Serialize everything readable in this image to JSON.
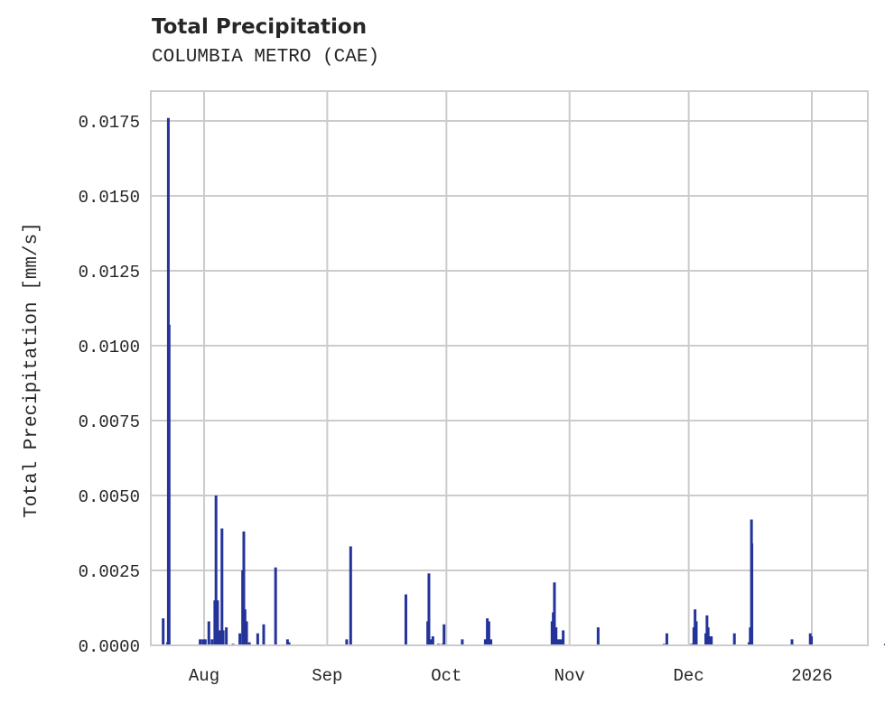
{
  "header": {
    "title": "Total Precipitation",
    "subtitle": "COLUMBIA METRO (CAE)"
  },
  "colors": {
    "bar": "#24339a",
    "grid": "#cccccc",
    "frame": "#cccccc",
    "text": "#262626"
  },
  "chart_data": {
    "type": "bar",
    "title": "Total Precipitation",
    "subtitle": "COLUMBIA METRO (CAE)",
    "xlabel": "",
    "ylabel": "Total Precipitation [mm/s]",
    "ylim": [
      0,
      0.0185
    ],
    "xlim_day": [
      -14,
      172
    ],
    "grid": true,
    "legend": "none",
    "x_ticks": [
      {
        "label": "Aug",
        "day": 0
      },
      {
        "label": "Sep",
        "day": 31
      },
      {
        "label": "Oct",
        "day": 61
      },
      {
        "label": "Nov",
        "day": 92
      },
      {
        "label": "Dec",
        "day": 122
      },
      {
        "label": "2026",
        "day": 153
      }
    ],
    "y_ticks": [
      "0.0000",
      "0.0025",
      "0.0050",
      "0.0075",
      "0.0100",
      "0.0125",
      "0.0150",
      "0.0175"
    ],
    "y_tick_values": [
      0,
      0.0025,
      0.005,
      0.0075,
      0.01,
      0.0125,
      0.015,
      0.0175
    ],
    "x_unit": "days since Aug 1 2025",
    "points": [
      {
        "day": -10.3,
        "value": 0.0009
      },
      {
        "day": -9.2,
        "value": 0.0001
      },
      {
        "day": -9.0,
        "value": 0.0176
      },
      {
        "day": -8.8,
        "value": 0.0107
      },
      {
        "day": -1.0,
        "value": 0.0002
      },
      {
        "day": -0.3,
        "value": 0.0002
      },
      {
        "day": 0.3,
        "value": 0.0002
      },
      {
        "day": 1.2,
        "value": 0.0008
      },
      {
        "day": 2.0,
        "value": 0.0002
      },
      {
        "day": 2.7,
        "value": 0.0015
      },
      {
        "day": 3.0,
        "value": 0.005
      },
      {
        "day": 3.4,
        "value": 0.0015
      },
      {
        "day": 3.9,
        "value": 0.0005
      },
      {
        "day": 4.5,
        "value": 0.0039
      },
      {
        "day": 4.8,
        "value": 0.0005
      },
      {
        "day": 5.6,
        "value": 0.0006
      },
      {
        "day": 7.3,
        "value": 5e-05
      },
      {
        "day": 9.0,
        "value": 0.0004
      },
      {
        "day": 9.7,
        "value": 0.0025
      },
      {
        "day": 10.0,
        "value": 0.0038
      },
      {
        "day": 10.3,
        "value": 0.0012
      },
      {
        "day": 10.7,
        "value": 0.0008
      },
      {
        "day": 11.4,
        "value": 0.0001
      },
      {
        "day": 13.5,
        "value": 0.0004
      },
      {
        "day": 15.0,
        "value": 0.0007
      },
      {
        "day": 18.0,
        "value": 0.0026
      },
      {
        "day": 21.0,
        "value": 0.0002
      },
      {
        "day": 21.4,
        "value": 0.0001
      },
      {
        "day": 35.9,
        "value": 0.0002
      },
      {
        "day": 36.9,
        "value": 0.0033
      },
      {
        "day": 50.8,
        "value": 0.0017
      },
      {
        "day": 56.3,
        "value": 0.0008
      },
      {
        "day": 56.6,
        "value": 0.0024
      },
      {
        "day": 57.2,
        "value": 0.0002
      },
      {
        "day": 57.6,
        "value": 0.0003
      },
      {
        "day": 59.0,
        "value": 5e-05
      },
      {
        "day": 60.0,
        "value": 5e-05
      },
      {
        "day": 60.4,
        "value": 0.0007
      },
      {
        "day": 65.0,
        "value": 0.0002
      },
      {
        "day": 70.8,
        "value": 0.0002
      },
      {
        "day": 71.3,
        "value": 0.0009
      },
      {
        "day": 71.7,
        "value": 0.0008
      },
      {
        "day": 72.2,
        "value": 0.0002
      },
      {
        "day": 87.6,
        "value": 0.0008
      },
      {
        "day": 87.9,
        "value": 0.0011
      },
      {
        "day": 88.2,
        "value": 0.0021
      },
      {
        "day": 88.6,
        "value": 0.0006
      },
      {
        "day": 89.2,
        "value": 0.0002
      },
      {
        "day": 89.8,
        "value": 0.0002
      },
      {
        "day": 90.4,
        "value": 0.0005
      },
      {
        "day": 99.2,
        "value": 0.0006
      },
      {
        "day": 115.8,
        "value": 5e-05
      },
      {
        "day": 116.5,
        "value": 0.0004
      },
      {
        "day": 122.7,
        "value": 5e-05
      },
      {
        "day": 123.3,
        "value": 0.0006
      },
      {
        "day": 123.6,
        "value": 0.0012
      },
      {
        "day": 123.9,
        "value": 0.0008
      },
      {
        "day": 126.3,
        "value": 0.0004
      },
      {
        "day": 126.6,
        "value": 0.001
      },
      {
        "day": 126.9,
        "value": 0.0006
      },
      {
        "day": 127.3,
        "value": 0.0003
      },
      {
        "day": 127.7,
        "value": 0.0003
      },
      {
        "day": 133.5,
        "value": 0.0004
      },
      {
        "day": 137.2,
        "value": 0.0001
      },
      {
        "day": 137.5,
        "value": 0.0006
      },
      {
        "day": 137.8,
        "value": 0.0042
      },
      {
        "day": 137.9,
        "value": 0.0034
      },
      {
        "day": 148.0,
        "value": 0.0002
      },
      {
        "day": 152.6,
        "value": 0.0004
      },
      {
        "day": 152.9,
        "value": 0.0003
      },
      {
        "day": 171.5,
        "value": 5e-05
      }
    ]
  }
}
